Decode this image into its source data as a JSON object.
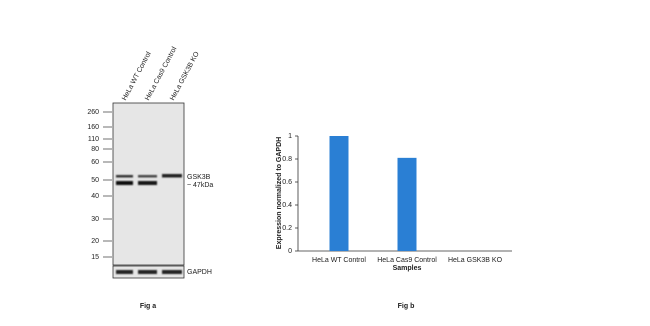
{
  "blot": {
    "lanes": [
      "HeLa WT Control",
      "HeLa Cas9 Control",
      "HeLa GSK3B KO"
    ],
    "markers": [
      260,
      160,
      110,
      80,
      60,
      50,
      40,
      30,
      20,
      15
    ],
    "target": "GSK3B",
    "target_size": "~ 47kDa",
    "loading_control": "GAPDH",
    "caption": "Fig a"
  },
  "chart_data": {
    "type": "bar",
    "caption": "Fig b",
    "x_label": "Samples",
    "y_label": "Expression normalized to GAPDH",
    "categories": [
      "HeLa WT Control",
      "HeLa Cas9 Control",
      "HeLa GSK3B KO"
    ],
    "values": [
      1,
      0.81,
      0
    ],
    "color": "#2a7fd4",
    "ylim": [
      0,
      1
    ],
    "yticks": [
      0,
      0.2,
      0.4,
      0.6,
      0.8,
      1
    ],
    "grid": false
  }
}
